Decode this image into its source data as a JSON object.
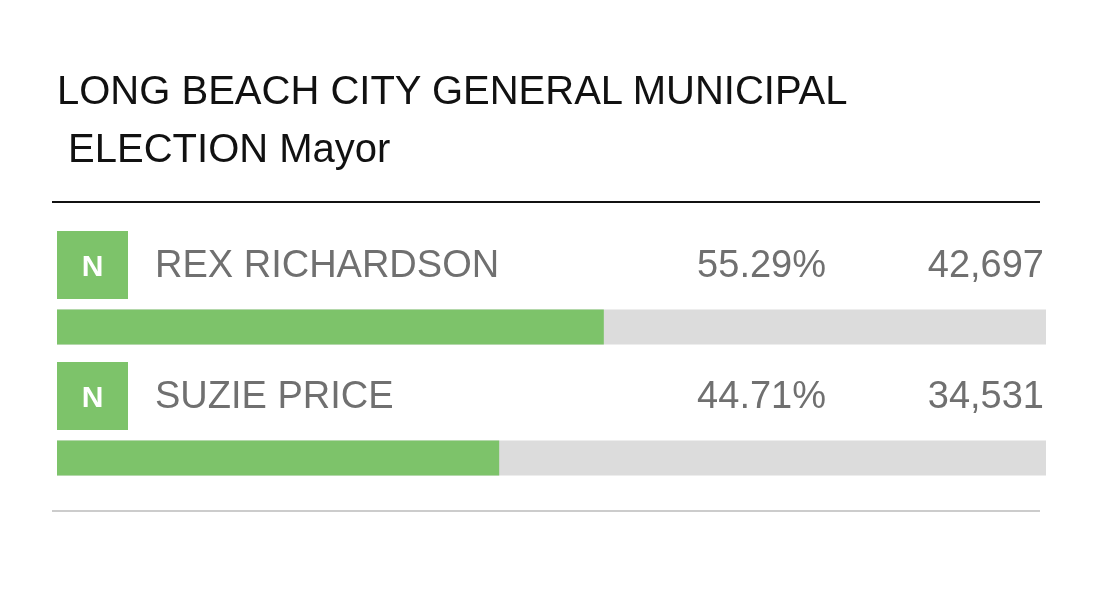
{
  "chart_data": {
    "type": "bar",
    "orientation": "horizontal",
    "title": "LONG BEACH CITY GENERAL MUNICIPAL ELECTION Mayor",
    "categories": [
      "REX RICHARDSON",
      "SUZIE PRICE"
    ],
    "values": [
      55.29,
      44.71
    ],
    "color": "#7dc36a",
    "xlim": [
      0,
      100
    ],
    "value_labels": [
      "55.29%",
      "44.71%"
    ],
    "annotations": [
      "N",
      "42,697",
      "N",
      "34,531"
    ]
  }
}
